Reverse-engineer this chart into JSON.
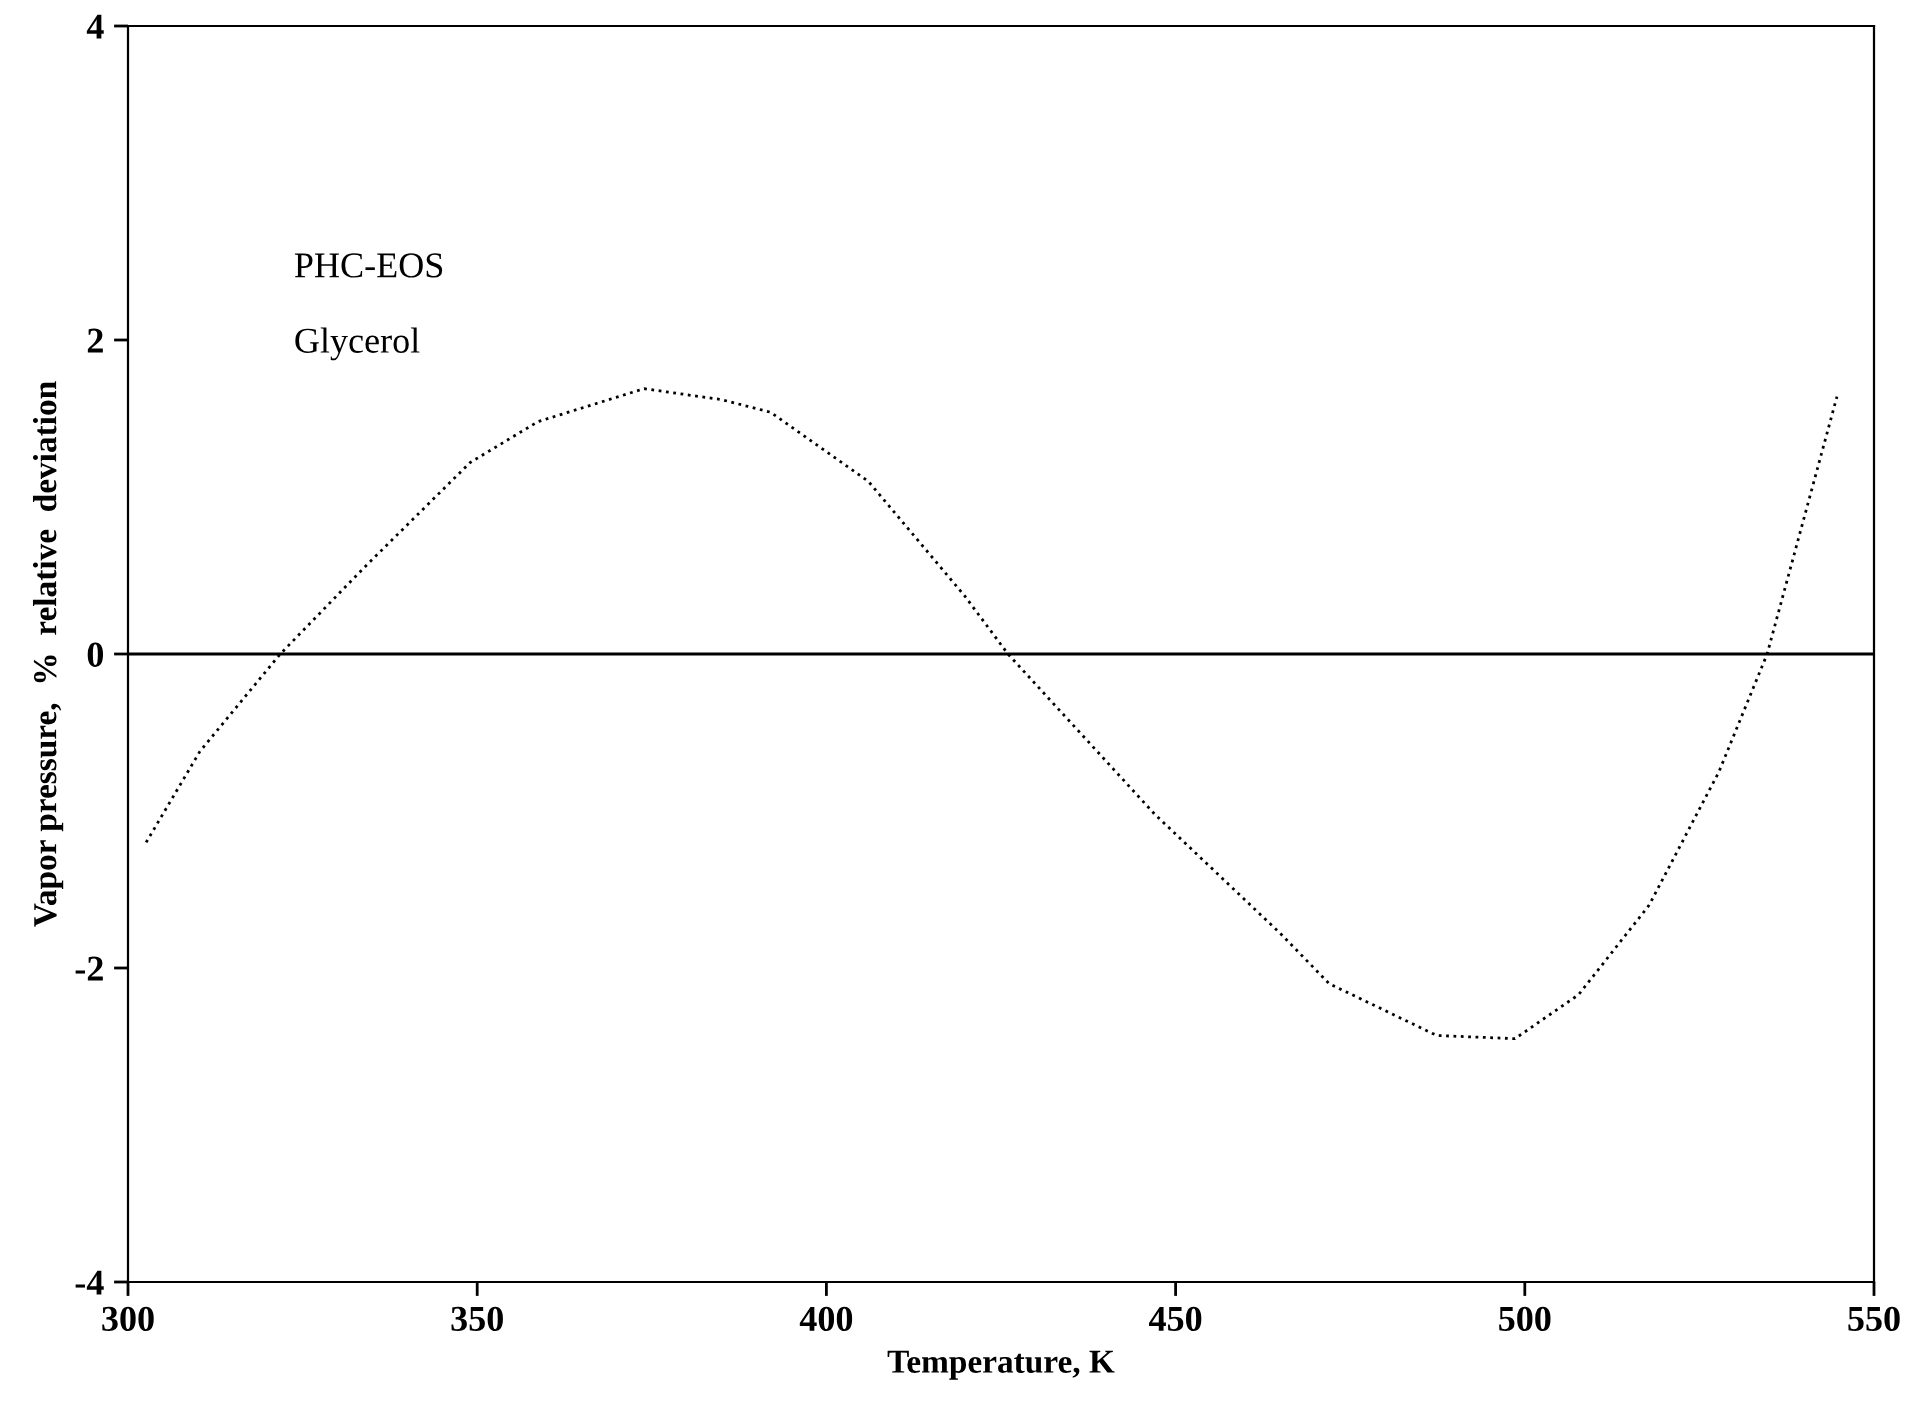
{
  "chart_data": {
    "type": "line",
    "xlabel": "Temperature, K",
    "ylabel": "Vapor pressure,  %  relative  deviation",
    "annotations": [
      "PHC-EOS",
      "Glycerol"
    ],
    "x": [
      302.6,
      310.3,
      321.8,
      333.8,
      349,
      358.7,
      373.9,
      385,
      392,
      406,
      419.8,
      426,
      447,
      465,
      472,
      487.4,
      498.6,
      507.7,
      517.8,
      527.8,
      534.7,
      544.7
    ],
    "series": [
      {
        "color": "#000000",
        "values": [
          -1.2,
          -0.62,
          0,
          0.55,
          1.22,
          1.48,
          1.69,
          1.62,
          1.54,
          1.1,
          0.37,
          0,
          -1.02,
          -1.78,
          -2.1,
          -2.43,
          -2.45,
          -2.17,
          -1.6,
          -0.75,
          0,
          1.64
        ]
      }
    ],
    "line_style": "dotted",
    "marker": "none",
    "xlim": [
      300,
      550
    ],
    "xticks": [
      300,
      350,
      400,
      450,
      500,
      550
    ],
    "ylim": [
      -4,
      4
    ],
    "yticks": [
      -4,
      -2,
      0,
      2,
      4
    ],
    "ref_lines": [
      {
        "axis": "y",
        "value": 0,
        "color": "#000000",
        "line_style": "solid"
      }
    ],
    "grid": false,
    "legend": false
  }
}
